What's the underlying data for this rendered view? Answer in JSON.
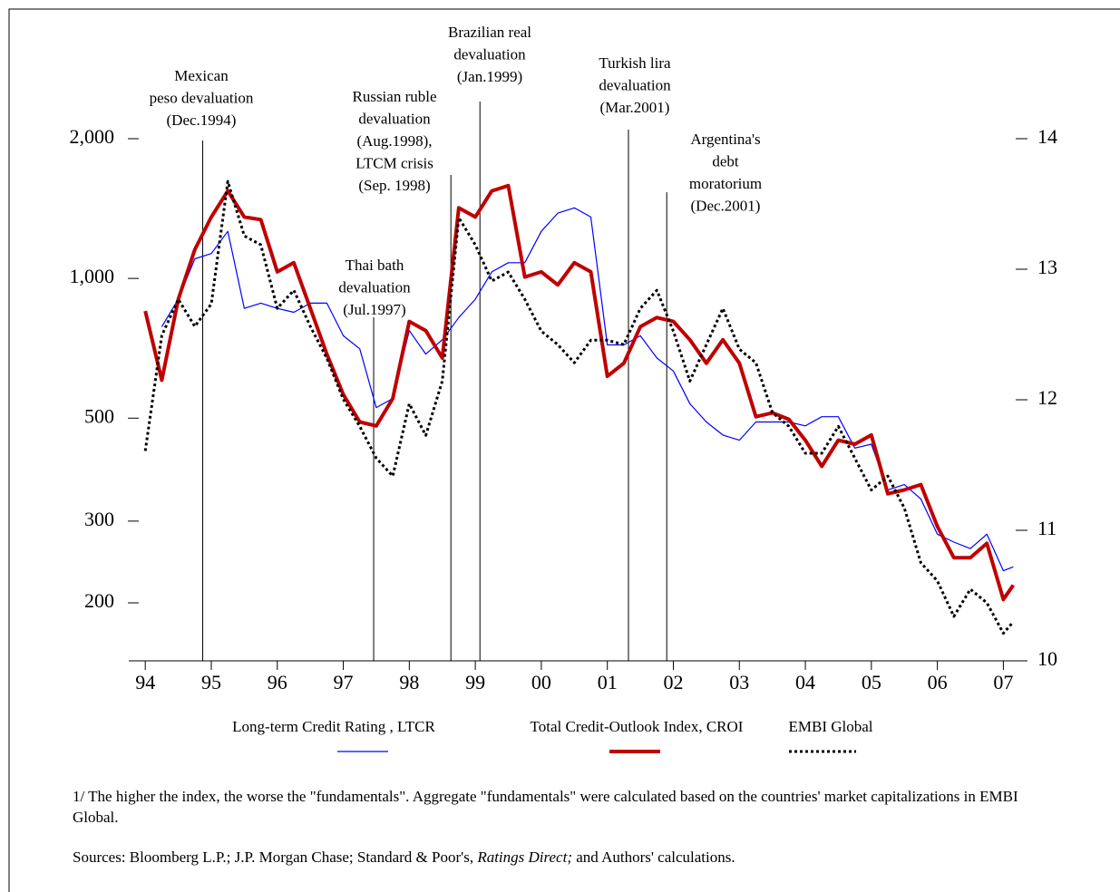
{
  "chart_data": {
    "type": "line",
    "x": [
      1994.0,
      1994.25,
      1994.5,
      1994.75,
      1995.0,
      1995.25,
      1995.5,
      1995.75,
      1996.0,
      1996.25,
      1996.5,
      1996.75,
      1997.0,
      1997.25,
      1997.5,
      1997.75,
      1998.0,
      1998.25,
      1998.5,
      1998.75,
      1999.0,
      1999.25,
      1999.5,
      1999.75,
      2000.0,
      2000.25,
      2000.5,
      2000.75,
      2001.0,
      2001.25,
      2001.5,
      2001.75,
      2002.0,
      2002.25,
      2002.5,
      2002.75,
      2003.0,
      2003.25,
      2003.5,
      2003.75,
      2004.0,
      2004.25,
      2004.5,
      2004.75,
      2005.0,
      2005.25,
      2005.5,
      2005.75,
      2006.0,
      2006.25,
      2006.5,
      2006.75,
      2007.0,
      2007.15
    ],
    "series": [
      {
        "name": "Long-term Credit Rating , LTCR",
        "color": "#0000ff",
        "axis": "y2",
        "line_style": "solid",
        "line_width": 1.2,
        "values": [
          null,
          12.56,
          12.77,
          13.08,
          13.12,
          13.29,
          12.7,
          12.74,
          12.7,
          12.67,
          12.74,
          12.74,
          12.49,
          12.39,
          11.94,
          12.01,
          12.53,
          12.35,
          12.46,
          12.63,
          12.77,
          12.98,
          13.05,
          13.05,
          13.29,
          13.43,
          13.47,
          13.4,
          12.42,
          12.42,
          12.49,
          12.32,
          12.22,
          11.97,
          11.83,
          11.73,
          11.69,
          11.83,
          11.83,
          11.83,
          11.8,
          11.87,
          11.87,
          11.63,
          11.66,
          11.31,
          11.35,
          11.24,
          10.97,
          10.91,
          10.86,
          10.97,
          10.69,
          10.72
        ]
      },
      {
        "name": "Total Credit-Outlook Index, CROI",
        "color": "#c00000",
        "axis": "y2",
        "line_style": "solid",
        "line_width": 4,
        "values": [
          12.68,
          12.15,
          12.77,
          13.15,
          13.4,
          13.6,
          13.4,
          13.38,
          12.98,
          13.05,
          12.7,
          12.35,
          12.04,
          11.83,
          11.8,
          12.01,
          12.6,
          12.53,
          12.32,
          13.47,
          13.4,
          13.6,
          13.64,
          12.94,
          12.98,
          12.88,
          13.05,
          12.98,
          12.18,
          12.28,
          12.56,
          12.63,
          12.6,
          12.46,
          12.28,
          12.46,
          12.28,
          11.87,
          11.9,
          11.85,
          11.69,
          11.49,
          11.69,
          11.66,
          11.73,
          11.28,
          11.31,
          11.35,
          11.03,
          10.79,
          10.79,
          10.9,
          10.47,
          10.58
        ]
      },
      {
        "name": "EMBI Global",
        "color": "#000000",
        "axis": "y",
        "line_style": "dotted",
        "line_width": 3,
        "values": [
          425,
          753,
          902,
          788,
          881,
          1618,
          1235,
          1181,
          862,
          943,
          788,
          673,
          549,
          480,
          410,
          375,
          537,
          459,
          601,
          1352,
          1181,
          987,
          1032,
          902,
          770,
          720,
          658,
          736,
          736,
          720,
          862,
          943,
          770,
          601,
          720,
          862,
          704,
          658,
          514,
          480,
          420,
          420,
          480,
          410,
          350,
          375,
          320,
          244,
          223,
          187,
          214,
          200,
          172,
          182
        ]
      }
    ],
    "xlim": [
      1993.75,
      2007.25
    ],
    "xticks": [
      {
        "value": 1994,
        "label": "94"
      },
      {
        "value": 1995,
        "label": "95"
      },
      {
        "value": 1996,
        "label": "96"
      },
      {
        "value": 1997,
        "label": "97"
      },
      {
        "value": 1998,
        "label": "98"
      },
      {
        "value": 1999,
        "label": "99"
      },
      {
        "value": 2000,
        "label": "00"
      },
      {
        "value": 2001,
        "label": "01"
      },
      {
        "value": 2002,
        "label": "02"
      },
      {
        "value": 2003,
        "label": "03"
      },
      {
        "value": 2004,
        "label": "04"
      },
      {
        "value": 2005,
        "label": "05"
      },
      {
        "value": 2006,
        "label": "06"
      },
      {
        "value": 2007,
        "label": "07"
      }
    ],
    "ylim": [
      150,
      2000
    ],
    "ylog": true,
    "yticks": [
      {
        "value": 2000,
        "label": "2,000"
      },
      {
        "value": 1000,
        "label": "1,000"
      },
      500,
      300,
      200
    ],
    "y2lim": [
      10,
      14
    ],
    "y2ticks": [
      10,
      11,
      12,
      13,
      14
    ],
    "annotations": [
      {
        "x": 1994.87,
        "lines": [
          "Mexican",
          "peso devaluation",
          "(Dec.1994)"
        ]
      },
      {
        "x": 1997.46,
        "lines": [
          "Thai bath",
          "devaluation",
          "(Jul.1997)"
        ]
      },
      {
        "x": 1998.63,
        "lines": [
          "Russian ruble",
          "devaluation",
          "(Aug.1998),",
          "LTCM crisis",
          "(Sep. 1998)"
        ]
      },
      {
        "x": 1999.07,
        "lines": [
          "Brazilian real",
          "devaluation",
          "(Jan.1999)"
        ]
      },
      {
        "x": 2001.32,
        "lines": [
          "Turkish lira",
          "devaluation",
          "(Mar.2001)"
        ]
      },
      {
        "x": 2001.9,
        "lines": [
          "Argentina's",
          "debt",
          "moratorium",
          "(Dec.2001)"
        ]
      }
    ]
  },
  "notes": {
    "footnote": "1/ The higher the index,  the worse the \"fundamentals\". Aggregate \"fundamentals\" were calculated based on the countries' market capitalizations in EMBI Global.",
    "sources": [
      "Sources: Bloomberg L.P.; J.P. Morgan Chase; Standard & Poor's, ",
      "Ratings Direct;",
      " and Authors' calculations."
    ]
  }
}
